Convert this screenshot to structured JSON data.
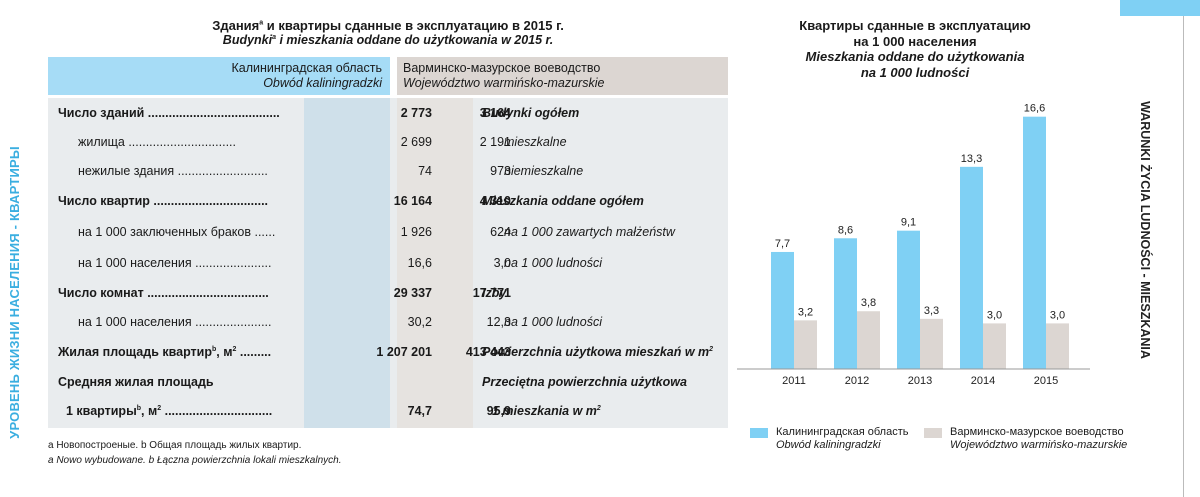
{
  "side_left": "УРОВЕНЬ ЖИЗНИ НАСЕЛЕНИЯ - КВАРТИРЫ",
  "side_right": "WARUNKI ŻYCIA LUDNOŚCI - MIESZKANIA",
  "table": {
    "title_ru_a": "Здания",
    "title_ru_b": " и квартиры сданные в эксплуатацию в 2015 г.",
    "title_pl_a": "Budynki",
    "title_pl_b": " i mieszkania oddane do użytkowania w 2015 r.",
    "sup_a": "a",
    "col1_ru": "Калининградская область",
    "col1_pl": "Obwód kaliningradzki",
    "col2_ru": "Варминско-мазурское воеводство",
    "col2_pl": "Województwo warmińsko-mazurskie",
    "rows": [
      {
        "ru": "Число зданий ......................................",
        "v1": "2 773",
        "v2": "3 164",
        "pl": "Budynki ogółem"
      },
      {
        "ru": "жилища ...............................",
        "v1": "2 699",
        "v2": "2 191",
        "pl": "mieszkalne"
      },
      {
        "ru": "нежилые здания ..........................",
        "v1": "74",
        "v2": "973",
        "pl": "niemieszkalne"
      },
      {
        "ru": "Число квартир .................................",
        "v1": "16 164",
        "v2": "4 310",
        "pl": "Mieszkania oddane ogółem"
      },
      {
        "ru": "на 1 000 заключенных браков ......",
        "v1": "1 926",
        "v2": "624",
        "pl": "na 1 000 zawartych małżeństw"
      },
      {
        "ru": "на 1 000 населения ......................",
        "v1": "16,6",
        "v2": "3,0",
        "pl": "na 1 000 ludności"
      },
      {
        "ru": "Число комнат ...................................",
        "v1": "29 337",
        "v2": "17 771",
        "pl": "Izby"
      },
      {
        "ru": "на 1 000 населения ......................",
        "v1": "30,2",
        "v2": "12,3",
        "pl": "na 1 000 ludności"
      },
      {
        "ru_a": "Жилая площадь квартир",
        "sup": "b",
        "ru_b": ", м",
        "sup2": "2",
        "ru_c": " .........",
        "v1": "1 207 201",
        "v2": "413 443",
        "pl_a": "Powierzchnia użytkowa mieszkań w m",
        "pl_sup": "2"
      },
      {
        "ru": "Средняя жилая площадь",
        "pl": "Przeciętna powierzchnia użytkowa"
      },
      {
        "ru_a": "1 квартиры",
        "sup": "b",
        "ru_b": ", м",
        "sup2": "2",
        "ru_c": " ...............................",
        "v1": "74,7",
        "v2": "95,9",
        "pl_a": "1 mieszkania w m",
        "pl_sup": "2"
      }
    ],
    "foot_ru": "a Новопостроеные. b Общая площадь жилых квартир.",
    "foot_pl": "a Nowo wybudowane.  b Łączna powierzchnia lokali mieszkalnych."
  },
  "chart_data": {
    "type": "bar",
    "title_ru_1": "Квартиры сданные в эксплуатацию",
    "title_ru_2": "на 1 000 населения",
    "title_pl_1": "Mieszkania oddane do użytkowania",
    "title_pl_2": "na 1 000 ludności",
    "categories": [
      "2011",
      "2012",
      "2013",
      "2014",
      "2015"
    ],
    "ylim": [
      0,
      17
    ],
    "grid": false,
    "series": [
      {
        "name": "Калининградская область",
        "name_pl": "Obwód kaliningradzki",
        "color": "#7fd0f4",
        "values": [
          7.7,
          8.6,
          9.1,
          13.3,
          16.6
        ],
        "labels": [
          "7,7",
          "8,6",
          "9,1",
          "13,3",
          "16,6"
        ]
      },
      {
        "name": "Варминско-мазурское воеводство",
        "name_pl": "Województwo warmińsko-mazurskie",
        "color": "#dcd6d2",
        "values": [
          3.2,
          3.8,
          3.3,
          3.0,
          3.0
        ],
        "labels": [
          "3,2",
          "3,8",
          "3,3",
          "3,0",
          "3,0"
        ]
      }
    ]
  },
  "colors": {
    "accent_blue": "#7fd0f4",
    "grey": "#dcd6d2",
    "side_blue": "#3aaee0"
  }
}
